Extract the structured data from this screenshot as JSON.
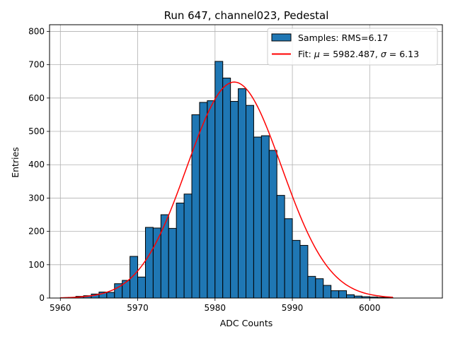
{
  "chart_data": {
    "type": "bar",
    "title": "Run 647, channel023, Pedestal",
    "xlabel": "ADC Counts",
    "ylabel": "Entries",
    "xlim": [
      5958.6,
      6009.4
    ],
    "ylim": [
      0,
      820
    ],
    "xticks": [
      5960,
      5970,
      5980,
      5990,
      6000
    ],
    "yticks": [
      0,
      100,
      200,
      300,
      400,
      500,
      600,
      700,
      800
    ],
    "grid": true,
    "legend_position": "upper-right",
    "histogram": {
      "name": "Samples: RMS=6.17",
      "color": "#1f77b4",
      "edgecolor": "#000000",
      "bin_start": 5960,
      "bin_width": 1,
      "counts": [
        1,
        2,
        5,
        7,
        12,
        18,
        17,
        43,
        53,
        125,
        63,
        212,
        210,
        250,
        209,
        285,
        312,
        550,
        587,
        592,
        710,
        660,
        590,
        628,
        578,
        483,
        487,
        443,
        308,
        238,
        173,
        158,
        65,
        58,
        38,
        22,
        22,
        10,
        6,
        4,
        3,
        2,
        1
      ]
    },
    "fit": {
      "legend_prefix": "Fit: ",
      "mu_symbol": "μ",
      "sigma_symbol": "σ",
      "mu": 5982.487,
      "mu_label": "5982.487",
      "sigma": 6.13,
      "sigma_label": "6.13",
      "amplitude": 648,
      "color": "#ff0000",
      "x_range": [
        5960,
        6003
      ]
    }
  }
}
